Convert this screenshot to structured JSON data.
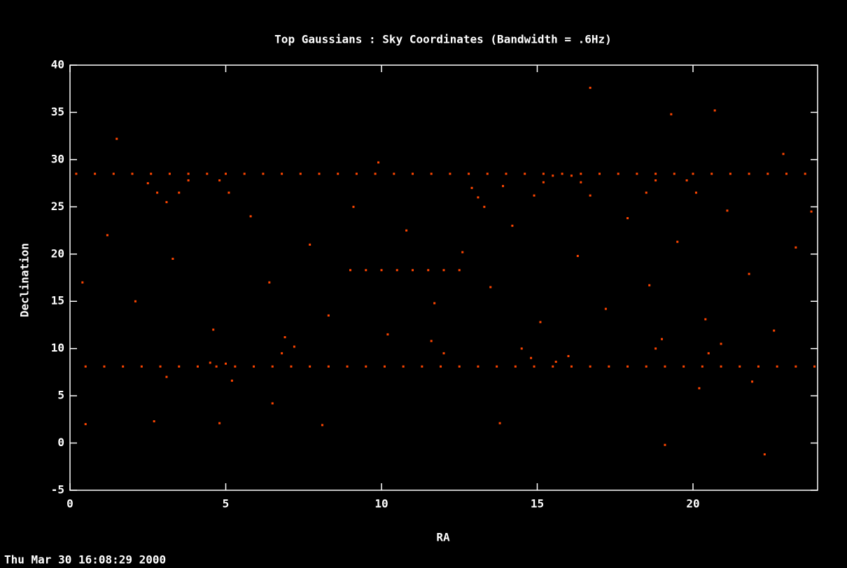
{
  "chart_data": {
    "type": "scatter",
    "title": "Top Gaussians : Sky Coordinates (Bandwidth = .6Hz)",
    "xlabel": "RA",
    "ylabel": "Declination",
    "timestamp": "Thu Mar 30 16:08:29 2000",
    "color": "#ff4500",
    "xlim": [
      0,
      24
    ],
    "ylim": [
      -5,
      40
    ],
    "xticks": [
      0,
      5,
      10,
      15,
      20
    ],
    "yticks": [
      -5,
      0,
      5,
      10,
      15,
      20,
      25,
      30,
      35,
      40
    ],
    "x": [
      0.2,
      0.8,
      1.4,
      2.0,
      2.6,
      3.2,
      3.8,
      4.4,
      5.0,
      5.6,
      6.2,
      6.8,
      7.4,
      8.0,
      8.6,
      9.2,
      9.8,
      10.4,
      11.0,
      11.6,
      12.2,
      12.8,
      13.4,
      14.0,
      14.6,
      15.2,
      15.8,
      16.4,
      17.0,
      17.6,
      18.2,
      18.8,
      19.4,
      20.0,
      20.6,
      21.2,
      21.8,
      22.4,
      23.0,
      23.6,
      0.5,
      1.1,
      1.7,
      2.3,
      2.9,
      3.5,
      4.1,
      4.7,
      5.3,
      5.9,
      6.5,
      7.1,
      7.7,
      8.3,
      8.9,
      9.5,
      10.1,
      10.7,
      11.3,
      11.9,
      12.5,
      13.1,
      13.7,
      14.3,
      14.9,
      15.5,
      16.1,
      16.7,
      17.3,
      17.9,
      18.5,
      19.1,
      19.7,
      20.3,
      20.9,
      21.5,
      22.1,
      22.7,
      23.3,
      23.9,
      14.9,
      15.2,
      15.5,
      16.1,
      16.4,
      16.7,
      3.5,
      3.8,
      4.8,
      5.1,
      18.5,
      18.8,
      19.8,
      20.1,
      12.9,
      13.1,
      13.3,
      2.5,
      2.8,
      3.1,
      14.5,
      14.8,
      15.6,
      16.0,
      4.5,
      5.0,
      6.8,
      7.2,
      12.0,
      11.6,
      20.5,
      20.9,
      18.8,
      19.0,
      9.0,
      9.5,
      10.0,
      10.5,
      11.0,
      11.5,
      12.0,
      12.5,
      1.2,
      2.1,
      3.3,
      4.6,
      5.8,
      6.4,
      7.7,
      8.3,
      9.1,
      10.2,
      10.8,
      11.7,
      12.6,
      13.5,
      14.2,
      15.1,
      16.3,
      17.2,
      17.9,
      18.6,
      19.5,
      20.4,
      21.1,
      21.8,
      22.6,
      23.3,
      0.4,
      6.9,
      13.9,
      23.8,
      1.5,
      16.7,
      19.3,
      20.7,
      9.9,
      22.9,
      5.2,
      0.5,
      2.7,
      4.8,
      8.1,
      13.8,
      19.1,
      22.3,
      6.5,
      21.9,
      20.2,
      3.1
    ],
    "values": [
      28.5,
      28.5,
      28.5,
      28.5,
      28.5,
      28.5,
      28.5,
      28.5,
      28.5,
      28.5,
      28.5,
      28.5,
      28.5,
      28.5,
      28.5,
      28.5,
      28.5,
      28.5,
      28.5,
      28.5,
      28.5,
      28.5,
      28.5,
      28.5,
      28.5,
      28.5,
      28.5,
      28.5,
      28.5,
      28.5,
      28.5,
      28.5,
      28.5,
      28.5,
      28.5,
      28.5,
      28.5,
      28.5,
      28.5,
      28.5,
      8.1,
      8.1,
      8.1,
      8.1,
      8.1,
      8.1,
      8.1,
      8.1,
      8.1,
      8.1,
      8.1,
      8.1,
      8.1,
      8.1,
      8.1,
      8.1,
      8.1,
      8.1,
      8.1,
      8.1,
      8.1,
      8.1,
      8.1,
      8.1,
      8.1,
      8.1,
      8.1,
      8.1,
      8.1,
      8.1,
      8.1,
      8.1,
      8.1,
      8.1,
      8.1,
      8.1,
      8.1,
      8.1,
      8.1,
      8.1,
      26.2,
      27.6,
      28.3,
      28.3,
      27.6,
      26.2,
      26.5,
      27.8,
      27.8,
      26.5,
      26.5,
      27.8,
      27.8,
      26.5,
      27,
      26,
      25,
      27.5,
      26.5,
      25.5,
      10,
      9,
      8.6,
      9.2,
      8.5,
      8.4,
      9.5,
      10.2,
      9.5,
      10.8,
      9.5,
      10.5,
      10,
      11,
      18.3,
      18.3,
      18.3,
      18.3,
      18.3,
      18.3,
      18.3,
      18.3,
      22,
      15,
      19.5,
      12,
      24,
      17,
      21,
      13.5,
      25,
      11.5,
      22.5,
      14.8,
      20.2,
      16.5,
      23,
      12.8,
      19.8,
      14.2,
      23.8,
      16.7,
      21.3,
      13.1,
      24.6,
      17.9,
      11.9,
      20.7,
      17,
      11.2,
      27.2,
      24.5,
      32.2,
      37.6,
      34.8,
      35.2,
      29.7,
      30.6,
      6.6,
      2,
      2.3,
      2.1,
      1.9,
      2.1,
      -0.2,
      -1.2,
      4.2,
      6.5,
      5.8,
      7
    ]
  }
}
